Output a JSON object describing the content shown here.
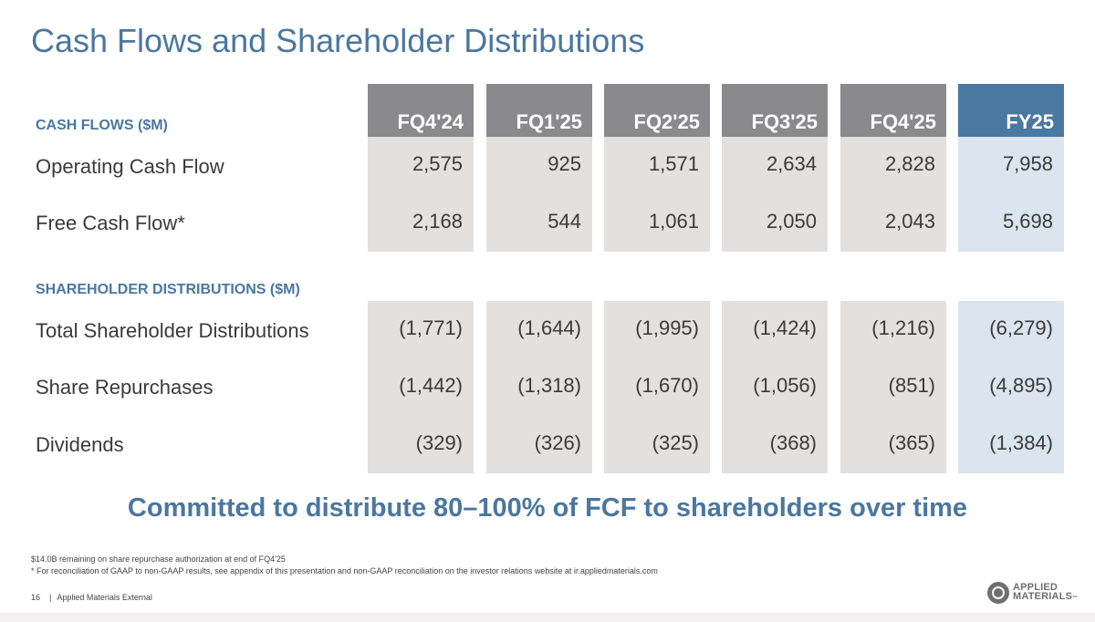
{
  "slide": {
    "title": "Cash Flows and Shareholder Distributions",
    "cash_flows_label": "CASH FLOWS ($M)",
    "distributions_label": "SHAREHOLDER DISTRIBUTIONS ($M)",
    "columns": [
      "FQ4'24",
      "FQ1'25",
      "FQ2'25",
      "FQ3'25",
      "FQ4'25",
      "FY25"
    ],
    "cash_flow_rows": [
      {
        "label": "Operating Cash Flow",
        "values": [
          "2,575",
          "925",
          "1,571",
          "2,634",
          "2,828",
          "7,958"
        ]
      },
      {
        "label": "Free Cash Flow*",
        "values": [
          "2,168",
          "544",
          "1,061",
          "2,050",
          "2,043",
          "5,698"
        ]
      }
    ],
    "distribution_rows": [
      {
        "label": "Total Shareholder Distributions",
        "values": [
          "(1,771)",
          "(1,644)",
          "(1,995)",
          "(1,424)",
          "(1,216)",
          "(6,279)"
        ]
      },
      {
        "label": "Share Repurchases",
        "values": [
          "(1,442)",
          "(1,318)",
          "(1,670)",
          "(1,056)",
          "(851)",
          "(4,895)"
        ]
      },
      {
        "label": "Dividends",
        "values": [
          "(329)",
          "(326)",
          "(325)",
          "(368)",
          "(365)",
          "(1,384)"
        ]
      }
    ],
    "commitment": "Committed to distribute 80–100% of FCF to shareholders over time",
    "footnotes": [
      "$14.0B remaining on share repurchase authorization at end of FQ4'25",
      "* For reconciliation of GAAP to non-GAAP results, see appendix of this presentation and non-GAAP reconciliation on the investor relations website at ir.appliedmaterials.com"
    ],
    "page_number": "16",
    "footer_label": "Applied Materials External",
    "logo": {
      "line1": "APPLIED",
      "line2": "MATERIALS",
      "mark": "™",
      "icon": "applied-materials-logo-icon"
    }
  },
  "colors": {
    "accent": "#4a77a0",
    "header_gray": "#8a898c",
    "header_blue": "#4b78a0",
    "cell_gray": "#e3e1e0",
    "cell_blue": "#dae5ef"
  }
}
